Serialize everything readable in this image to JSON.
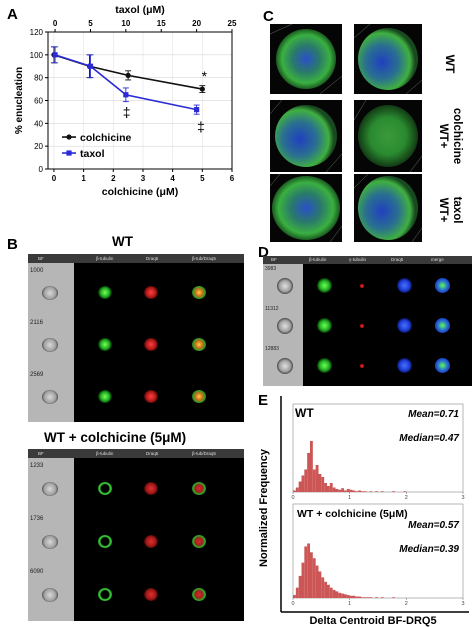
{
  "panel_labels": {
    "a": "A",
    "b": "B",
    "c": "C",
    "d": "D",
    "e": "E"
  },
  "colors": {
    "colchicine": "#111111",
    "taxol": "#2a2ad6",
    "hist": "#cc5555",
    "tubulin": "#22c022",
    "draq5": "#d42020",
    "dapi": "#2255ff"
  },
  "chart_data": [
    {
      "id": "A",
      "type": "line",
      "xlabel": "colchicine (μM)",
      "x2label": "taxol (μM)",
      "ylabel": "% enucleation",
      "xlim": [
        -0.2,
        6
      ],
      "x2lim": [
        -1,
        25
      ],
      "ylim": [
        0,
        120
      ],
      "xticks": [
        "0",
        "1",
        "2",
        "3",
        "4",
        "5",
        "6"
      ],
      "x2ticks": [
        "0",
        "5",
        "10",
        "15",
        "20",
        "25"
      ],
      "yticks": [
        "0",
        "20",
        "40",
        "60",
        "80",
        "100",
        "120"
      ],
      "series": [
        {
          "name": "colchicine",
          "x": [
            0,
            1.2,
            2.5,
            5
          ],
          "y": [
            100,
            90,
            82,
            70
          ],
          "err": [
            7,
            10,
            4,
            3
          ]
        },
        {
          "name": "taxol",
          "x": [
            0,
            5,
            10,
            20
          ],
          "y": [
            100,
            90,
            65,
            52
          ],
          "err": [
            7,
            10,
            6,
            4
          ]
        }
      ],
      "annotations": [
        "*",
        "‡",
        "‡"
      ]
    },
    {
      "id": "E-WT",
      "type": "bar",
      "title": "WT",
      "mean": "Mean=0.71",
      "median": "Median=0.47",
      "xticks": [
        "0",
        "1",
        "2",
        "3"
      ],
      "xlim": [
        0,
        3
      ],
      "bins_start": 0,
      "bin_width": 0.05,
      "values": [
        2,
        6,
        14,
        22,
        30,
        52,
        68,
        30,
        36,
        24,
        20,
        12,
        8,
        12,
        6,
        4,
        3,
        5,
        2,
        4,
        3,
        2,
        1,
        2,
        1,
        1,
        0,
        1,
        0,
        1,
        0,
        1,
        0,
        0,
        0,
        1,
        0,
        0,
        0,
        1
      ]
    },
    {
      "id": "E-colch",
      "type": "bar",
      "title": "WT + colchicine (5μM)",
      "mean": "Mean=0.57",
      "median": "Median=0.39",
      "xticks": [
        "0",
        "1",
        "2",
        "3"
      ],
      "xlim": [
        0,
        3
      ],
      "bins_start": 0,
      "bin_width": 0.05,
      "values": [
        4,
        14,
        30,
        48,
        70,
        74,
        62,
        54,
        44,
        36,
        28,
        22,
        18,
        14,
        11,
        9,
        7,
        6,
        5,
        4,
        3,
        3,
        2,
        2,
        1,
        1,
        1,
        1,
        0,
        1,
        0,
        1,
        0,
        0,
        0,
        1
      ]
    }
  ],
  "e_axis": {
    "ylabel": "Normalized Frequency",
    "xlabel": "Delta Centroid BF-DRQ5"
  },
  "panel_b": {
    "title_top": "WT",
    "title_bottom": "WT + colchicine (5μM)",
    "headers": [
      "BF",
      "β-tubulin",
      "Draq5",
      "β-tub/Draq5"
    ],
    "rows_top": [
      "1000",
      "2116",
      "2569"
    ],
    "rows_bottom": [
      "1233",
      "1736",
      "6090"
    ]
  },
  "panel_c": {
    "labels": [
      "WT",
      "WT+\ncolchicine",
      "WT+\ntaxol"
    ]
  },
  "panel_d": {
    "headers": [
      "BF",
      "β-tubulin",
      "γ-tubulin",
      "Draq5",
      "merge"
    ],
    "rows": [
      "3983",
      "11312",
      "12883"
    ]
  }
}
